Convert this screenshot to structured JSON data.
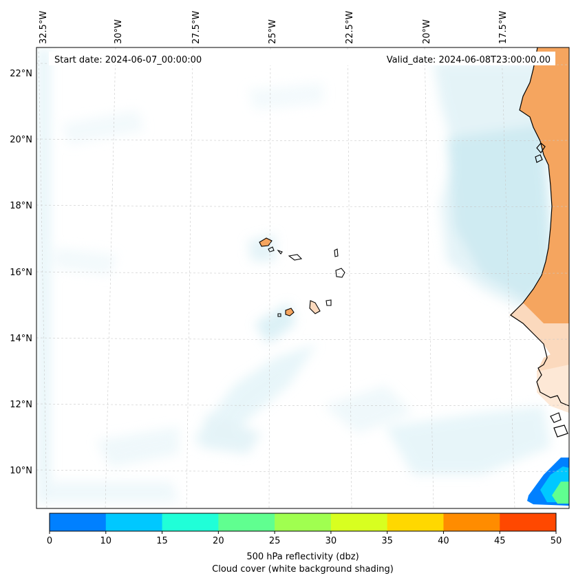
{
  "header": {
    "start_label": "Start date: 2024-06-07_00:00:00",
    "valid_label": "Valid_date: 2024-06-08T23:00:00.00"
  },
  "axes": {
    "lon_labels": [
      "32.5°W",
      "30°W",
      "27.5°W",
      "25°W",
      "22.5°W",
      "20°W",
      "17.5°W"
    ],
    "lat_labels": [
      "22°N",
      "20°N",
      "18°N",
      "16°N",
      "14°N",
      "12°N",
      "10°N"
    ]
  },
  "colorbar": {
    "ticks": [
      "0",
      "10",
      "15",
      "20",
      "25",
      "30",
      "35",
      "40",
      "45",
      "50"
    ],
    "colors": [
      "#0080ff",
      "#00c8ff",
      "#20ffd8",
      "#60ff90",
      "#a0ff50",
      "#d8ff20",
      "#ffd800",
      "#ff8c00",
      "#ff4800"
    ],
    "label_line1": "500 hPa reflectivity (dbz)",
    "label_line2": "Cloud cover (white background shading)"
  },
  "colors": {
    "land": "#f5a55f",
    "land_light": "#fbd9bd",
    "cloud": "#a9dbe8",
    "coast": "#000000",
    "grid": "#c8c8c8"
  }
}
